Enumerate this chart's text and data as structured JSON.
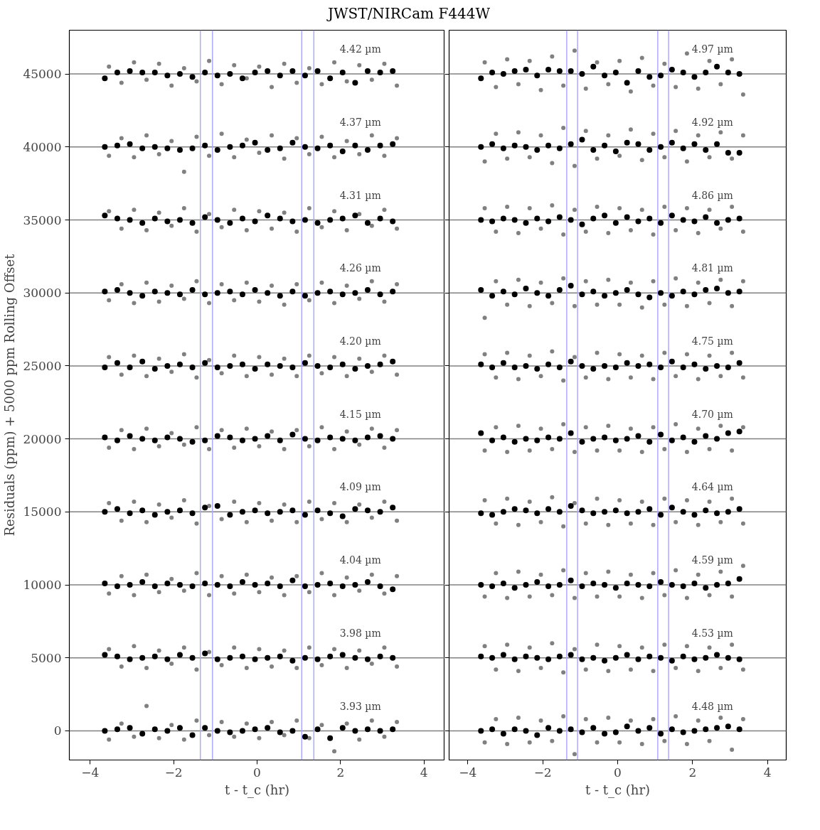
{
  "chart_data": [
    {
      "type": "scatter",
      "title": "JWST/NIRCam F444W",
      "xlabel": "t - t_c (hr)",
      "ylabel": "Residuals (ppm) + 5000 ppm Rolling Offset",
      "marker": "circle",
      "grid": false,
      "xlim": [
        -4.5,
        4.5
      ],
      "xticks": [
        -4,
        -2,
        0,
        2,
        4
      ],
      "ylim": [
        -2000,
        48000
      ],
      "yticks": [
        0,
        5000,
        10000,
        15000,
        20000,
        25000,
        30000,
        35000,
        40000,
        45000
      ],
      "x": [
        -3.65,
        -3.35,
        -3.05,
        -2.75,
        -2.45,
        -2.15,
        -1.85,
        -1.55,
        -1.25,
        -0.95,
        -0.65,
        -0.35,
        -0.05,
        0.25,
        0.55,
        0.85,
        1.15,
        1.45,
        1.75,
        2.05,
        2.35,
        2.65,
        2.95,
        3.25
      ],
      "ref_lines": [
        {
          "axis": "y",
          "value": 0,
          "color": "#808080"
        },
        {
          "axis": "y",
          "value": 5000,
          "color": "#808080"
        },
        {
          "axis": "y",
          "value": 10000,
          "color": "#808080"
        },
        {
          "axis": "y",
          "value": 15000,
          "color": "#808080"
        },
        {
          "axis": "y",
          "value": 20000,
          "color": "#808080"
        },
        {
          "axis": "y",
          "value": 25000,
          "color": "#808080"
        },
        {
          "axis": "y",
          "value": 30000,
          "color": "#808080"
        },
        {
          "axis": "y",
          "value": 35000,
          "color": "#808080"
        },
        {
          "axis": "y",
          "value": 40000,
          "color": "#808080"
        },
        {
          "axis": "y",
          "value": 45000,
          "color": "#808080"
        },
        {
          "axis": "x",
          "value": -1.36,
          "color": "#aaaaff"
        },
        {
          "axis": "x",
          "value": -1.07,
          "color": "#aaaaff"
        },
        {
          "axis": "x",
          "value": 1.07,
          "color": "#aaaaff"
        },
        {
          "axis": "x",
          "value": 1.36,
          "color": "#aaaaff"
        }
      ],
      "annotations": [
        "4.42 µm",
        "4.37 µm",
        "4.31 µm",
        "4.26 µm",
        "4.20 µm",
        "4.15 µm",
        "4.09 µm",
        "4.04 µm",
        "3.98 µm",
        "3.93 µm"
      ],
      "series": [
        {
          "color": "#808080",
          "x": [
            -3.55,
            -3.25,
            -2.95,
            -2.65,
            -2.35,
            -2.05,
            -1.75,
            -1.45,
            -1.15,
            -0.85,
            -0.55,
            -0.25,
            0.05,
            0.35,
            0.65,
            0.95,
            1.25,
            1.55,
            1.85,
            2.15,
            2.45,
            2.75,
            3.05,
            3.35
          ],
          "values": [
            45500,
            44400,
            45800,
            44600,
            45700,
            44200,
            45400,
            44500,
            45900,
            44300,
            45600,
            44700,
            45500,
            44100,
            45700,
            44400,
            45400,
            44300,
            45800,
            44500,
            45600,
            44600,
            45700,
            44200
          ]
        },
        {
          "color": "#808080",
          "x": [
            -3.55,
            -3.25,
            -2.95,
            -2.65,
            -2.35,
            -2.05,
            -1.75,
            -1.45,
            -1.15,
            -0.85,
            -0.55,
            -0.25,
            0.05,
            0.35,
            0.65,
            0.95,
            1.25,
            1.55,
            1.85,
            2.15,
            2.45,
            2.75,
            3.05,
            3.35
          ],
          "values": [
            39400,
            40600,
            39300,
            40800,
            39500,
            40400,
            38300,
            40700,
            39400,
            40900,
            39300,
            40500,
            39600,
            40800,
            39200,
            40600,
            39500,
            40700,
            39300,
            40400,
            39500,
            40800,
            39400,
            40600
          ]
        },
        {
          "color": "#808080",
          "x": [
            -3.55,
            -3.25,
            -2.95,
            -2.65,
            -2.35,
            -2.05,
            -1.75,
            -1.45,
            -1.15,
            -0.85,
            -0.55,
            -0.25,
            0.05,
            0.35,
            0.65,
            0.95,
            1.25,
            1.55,
            1.85,
            2.15,
            2.45,
            2.75,
            3.05,
            3.35
          ],
          "values": [
            35600,
            34400,
            35700,
            34300,
            35500,
            34600,
            35800,
            34200,
            35400,
            34500,
            35700,
            34300,
            35600,
            34400,
            35500,
            34200,
            35800,
            34500,
            35600,
            34300,
            35400,
            34600,
            35700,
            34400
          ]
        },
        {
          "color": "#808080",
          "x": [
            -3.55,
            -3.25,
            -2.95,
            -2.65,
            -2.35,
            -2.05,
            -1.75,
            -1.45,
            -1.15,
            -0.85,
            -0.55,
            -0.25,
            0.05,
            0.35,
            0.65,
            0.95,
            1.25,
            1.55,
            1.85,
            2.15,
            2.45,
            2.75,
            3.05,
            3.35
          ],
          "values": [
            29500,
            30600,
            29300,
            30700,
            29400,
            30500,
            29600,
            30800,
            29300,
            30600,
            29500,
            30700,
            29400,
            30500,
            29200,
            30600,
            29500,
            30700,
            29300,
            30500,
            29600,
            30800,
            29400,
            30600
          ]
        },
        {
          "color": "#808080",
          "x": [
            -3.55,
            -3.25,
            -2.95,
            -2.65,
            -2.35,
            -2.05,
            -1.75,
            -1.45,
            -1.15,
            -0.85,
            -0.55,
            -0.25,
            0.05,
            0.35,
            0.65,
            0.95,
            1.25,
            1.55,
            1.85,
            2.15,
            2.45,
            2.75,
            3.05,
            3.35
          ],
          "values": [
            25600,
            24400,
            25700,
            24300,
            25500,
            24600,
            25800,
            24200,
            25400,
            24500,
            25700,
            24300,
            25600,
            24400,
            25500,
            24300,
            25700,
            24500,
            25600,
            24300,
            25500,
            24600,
            25700,
            24400
          ]
        },
        {
          "color": "#808080",
          "x": [
            -3.55,
            -3.25,
            -2.95,
            -2.65,
            -2.35,
            -2.05,
            -1.75,
            -1.45,
            -1.15,
            -0.85,
            -0.55,
            -0.25,
            0.05,
            0.35,
            0.65,
            0.95,
            1.25,
            1.55,
            1.85,
            2.15,
            2.45,
            2.75,
            3.05,
            3.35
          ],
          "values": [
            19400,
            20600,
            19300,
            20700,
            19500,
            20400,
            19600,
            20800,
            19300,
            20600,
            19400,
            20700,
            19500,
            20500,
            19300,
            20600,
            19500,
            20800,
            19300,
            20500,
            19600,
            20700,
            19400,
            20600
          ]
        },
        {
          "color": "#808080",
          "x": [
            -3.55,
            -3.25,
            -2.95,
            -2.65,
            -2.35,
            -2.05,
            -1.75,
            -1.45,
            -1.15,
            -0.85,
            -0.55,
            -0.25,
            0.05,
            0.35,
            0.65,
            0.95,
            1.25,
            1.55,
            1.85,
            2.15,
            2.45,
            2.75,
            3.05,
            3.35
          ],
          "values": [
            15600,
            14400,
            15700,
            14300,
            15500,
            14600,
            15800,
            14200,
            15400,
            14500,
            15700,
            14300,
            15600,
            14400,
            15500,
            14300,
            15700,
            14500,
            15600,
            14300,
            15500,
            14600,
            15700,
            14400
          ]
        },
        {
          "color": "#808080",
          "x": [
            -3.55,
            -3.25,
            -2.95,
            -2.65,
            -2.35,
            -2.05,
            -1.75,
            -1.45,
            -1.15,
            -0.85,
            -0.55,
            -0.25,
            0.05,
            0.35,
            0.65,
            0.95,
            1.25,
            1.55,
            1.85,
            2.15,
            2.45,
            2.75,
            3.05,
            3.35
          ],
          "values": [
            9400,
            10600,
            9300,
            10700,
            9500,
            10400,
            9600,
            10800,
            9300,
            10600,
            9400,
            10700,
            9500,
            10500,
            9300,
            10600,
            9500,
            10800,
            9300,
            10500,
            9600,
            10700,
            9400,
            10600
          ]
        },
        {
          "color": "#808080",
          "x": [
            -3.55,
            -3.25,
            -2.95,
            -2.65,
            -2.35,
            -2.05,
            -1.75,
            -1.45,
            -1.15,
            -0.85,
            -0.55,
            -0.25,
            0.05,
            0.35,
            0.65,
            0.95,
            1.25,
            1.55,
            1.85,
            2.15,
            2.45,
            2.75,
            3.05,
            3.35
          ],
          "values": [
            5600,
            4400,
            5800,
            4300,
            5500,
            4600,
            5700,
            4200,
            5400,
            4500,
            5700,
            4300,
            5600,
            4400,
            5500,
            4300,
            5700,
            4500,
            5600,
            4300,
            5500,
            4600,
            5700,
            4400
          ]
        },
        {
          "color": "#808080",
          "x": [
            -3.55,
            -3.25,
            -2.95,
            -2.65,
            -2.35,
            -2.05,
            -1.75,
            -1.45,
            -1.15,
            -0.85,
            -0.55,
            -0.25,
            0.05,
            0.35,
            0.65,
            0.95,
            1.25,
            1.55,
            1.85,
            2.15,
            2.45,
            2.75,
            3.05,
            3.35
          ],
          "values": [
            -600,
            500,
            -400,
            1700,
            -500,
            400,
            -600,
            700,
            -300,
            600,
            -400,
            500,
            -500,
            600,
            -300,
            700,
            -500,
            400,
            -1400,
            500,
            -600,
            700,
            -400,
            600
          ]
        },
        {
          "color": "#000000",
          "values": [
            44700,
            45100,
            45200,
            45100,
            45100,
            44900,
            45000,
            44800,
            45100,
            44900,
            45000,
            44700,
            45100,
            45200,
            44900,
            45200,
            44900,
            45200,
            44700,
            45100,
            44400,
            45200,
            45100,
            45200
          ]
        },
        {
          "color": "#000000",
          "values": [
            40000,
            40100,
            40200,
            39900,
            40000,
            39900,
            39800,
            39900,
            40100,
            39800,
            40000,
            40100,
            40300,
            39800,
            39900,
            40300,
            40000,
            39900,
            40100,
            39700,
            40100,
            39800,
            40100,
            40200
          ]
        },
        {
          "color": "#000000",
          "values": [
            35300,
            35100,
            35000,
            34800,
            35100,
            34900,
            35000,
            34800,
            35200,
            35000,
            34800,
            35100,
            34900,
            35300,
            35100,
            34900,
            35000,
            34800,
            35000,
            35100,
            35300,
            34800,
            35100,
            34900
          ]
        },
        {
          "color": "#000000",
          "values": [
            30100,
            30200,
            30000,
            29800,
            30100,
            30000,
            29900,
            30200,
            29900,
            30000,
            30100,
            29900,
            30200,
            30000,
            29800,
            30100,
            29800,
            30000,
            30100,
            29900,
            30000,
            30200,
            29900,
            30100
          ]
        },
        {
          "color": "#000000",
          "values": [
            24900,
            25200,
            24900,
            25300,
            24800,
            25000,
            25100,
            24900,
            25200,
            24900,
            25000,
            25100,
            24800,
            25100,
            25000,
            24900,
            25200,
            25000,
            24900,
            25100,
            24800,
            25000,
            25100,
            25300
          ]
        },
        {
          "color": "#000000",
          "values": [
            20100,
            19900,
            20200,
            20000,
            19900,
            20100,
            20000,
            19800,
            19900,
            20200,
            20100,
            19900,
            20000,
            20200,
            19900,
            20300,
            20000,
            19900,
            20100,
            20000,
            19900,
            20100,
            20200,
            20000
          ]
        },
        {
          "color": "#000000",
          "values": [
            15000,
            15200,
            14900,
            15100,
            14800,
            15000,
            15100,
            14900,
            15300,
            15400,
            14800,
            15000,
            15100,
            14900,
            15000,
            15100,
            14800,
            15100,
            14900,
            14700,
            15200,
            15100,
            15000,
            15300
          ]
        },
        {
          "color": "#000000",
          "values": [
            10100,
            9900,
            10000,
            10200,
            9900,
            10100,
            10000,
            9900,
            10100,
            10000,
            9900,
            10200,
            10000,
            10100,
            9900,
            10300,
            9900,
            10000,
            10100,
            9900,
            10000,
            10200,
            9900,
            9700
          ]
        },
        {
          "color": "#000000",
          "values": [
            5200,
            5100,
            4900,
            5000,
            5100,
            4900,
            5200,
            5000,
            5300,
            4900,
            5000,
            5100,
            4900,
            5000,
            5100,
            4800,
            5000,
            4900,
            5100,
            5200,
            5000,
            4900,
            5100,
            5000
          ]
        },
        {
          "color": "#000000",
          "values": [
            0,
            100,
            200,
            -200,
            100,
            0,
            200,
            -300,
            200,
            0,
            -100,
            0,
            100,
            200,
            -100,
            0,
            -400,
            100,
            -500,
            200,
            0,
            100,
            0,
            100
          ]
        }
      ]
    },
    {
      "type": "scatter",
      "xlabel": "t - t_c (hr)",
      "marker": "circle",
      "grid": false,
      "tick_labels": "x",
      "xlim": [
        -4.5,
        4.5
      ],
      "xticks": [
        -4,
        -2,
        0,
        2,
        4
      ],
      "ylim": [
        -2000,
        48000
      ],
      "yticks": [
        0,
        5000,
        10000,
        15000,
        20000,
        25000,
        30000,
        35000,
        40000,
        45000
      ],
      "x": [
        -3.65,
        -3.35,
        -3.05,
        -2.75,
        -2.45,
        -2.15,
        -1.85,
        -1.55,
        -1.25,
        -0.95,
        -0.65,
        -0.35,
        -0.05,
        0.25,
        0.55,
        0.85,
        1.15,
        1.45,
        1.75,
        2.05,
        2.35,
        2.65,
        2.95,
        3.25
      ],
      "ref_lines": [
        {
          "axis": "y",
          "value": 0,
          "color": "#808080"
        },
        {
          "axis": "y",
          "value": 5000,
          "color": "#808080"
        },
        {
          "axis": "y",
          "value": 10000,
          "color": "#808080"
        },
        {
          "axis": "y",
          "value": 15000,
          "color": "#808080"
        },
        {
          "axis": "y",
          "value": 20000,
          "color": "#808080"
        },
        {
          "axis": "y",
          "value": 25000,
          "color": "#808080"
        },
        {
          "axis": "y",
          "value": 30000,
          "color": "#808080"
        },
        {
          "axis": "y",
          "value": 35000,
          "color": "#808080"
        },
        {
          "axis": "y",
          "value": 40000,
          "color": "#808080"
        },
        {
          "axis": "y",
          "value": 45000,
          "color": "#808080"
        },
        {
          "axis": "x",
          "value": -1.36,
          "color": "#aaaaff"
        },
        {
          "axis": "x",
          "value": -1.07,
          "color": "#aaaaff"
        },
        {
          "axis": "x",
          "value": 1.07,
          "color": "#aaaaff"
        },
        {
          "axis": "x",
          "value": 1.36,
          "color": "#aaaaff"
        }
      ],
      "annotations": [
        "4.97 µm",
        "4.92 µm",
        "4.86 µm",
        "4.81 µm",
        "4.75 µm",
        "4.70 µm",
        "4.64 µm",
        "4.59 µm",
        "4.53 µm",
        "4.48 µm"
      ],
      "series": [
        {
          "color": "#808080",
          "x": [
            -3.55,
            -3.25,
            -2.95,
            -2.65,
            -2.35,
            -2.05,
            -1.75,
            -1.45,
            -1.15,
            -0.85,
            -0.55,
            -0.25,
            0.05,
            0.35,
            0.65,
            0.95,
            1.25,
            1.55,
            1.85,
            2.15,
            2.45,
            2.75,
            3.05,
            3.35
          ],
          "values": [
            45800,
            44100,
            46000,
            44300,
            45900,
            43900,
            46200,
            44200,
            46600,
            44000,
            45800,
            44300,
            45900,
            43800,
            46100,
            44200,
            45700,
            44100,
            46400,
            44000,
            45900,
            44300,
            46000,
            43600
          ]
        },
        {
          "color": "#808080",
          "x": [
            -3.55,
            -3.25,
            -2.95,
            -2.65,
            -2.35,
            -2.05,
            -1.75,
            -1.45,
            -1.15,
            -0.85,
            -0.55,
            -0.25,
            0.05,
            0.35,
            0.65,
            0.95,
            1.25,
            1.55,
            1.85,
            2.15,
            2.45,
            2.75,
            3.05,
            3.35
          ],
          "values": [
            39000,
            40900,
            39200,
            41000,
            39300,
            40800,
            38900,
            41300,
            38700,
            41100,
            39200,
            40800,
            39400,
            41200,
            39100,
            40900,
            39300,
            41100,
            39000,
            40800,
            39300,
            41000,
            39200,
            40800
          ]
        },
        {
          "color": "#808080",
          "x": [
            -3.55,
            -3.25,
            -2.95,
            -2.65,
            -2.35,
            -2.05,
            -1.75,
            -1.45,
            -1.15,
            -0.85,
            -0.55,
            -0.25,
            0.05,
            0.35,
            0.65,
            0.95,
            1.25,
            1.55,
            1.85,
            2.15,
            2.45,
            2.75,
            3.05,
            3.35
          ],
          "values": [
            35800,
            34200,
            35900,
            34100,
            35800,
            34400,
            36000,
            34000,
            35700,
            34200,
            35900,
            34100,
            35800,
            34300,
            35700,
            34000,
            35900,
            34300,
            35800,
            34100,
            35700,
            34400,
            35900,
            34200
          ]
        },
        {
          "color": "#808080",
          "x": [
            -3.55,
            -3.25,
            -2.95,
            -2.65,
            -2.35,
            -2.05,
            -1.75,
            -1.45,
            -1.15,
            -0.85,
            -0.55,
            -0.25,
            0.05,
            0.35,
            0.65,
            0.95,
            1.25,
            1.55,
            1.85,
            2.15,
            2.45,
            2.75,
            3.05,
            3.35
          ],
          "values": [
            28300,
            30800,
            29200,
            30900,
            29100,
            30700,
            29300,
            31000,
            29100,
            30800,
            29200,
            30900,
            29200,
            30700,
            29000,
            30800,
            29200,
            31000,
            29100,
            30700,
            29300,
            30900,
            29100,
            30800
          ]
        },
        {
          "color": "#808080",
          "x": [
            -3.55,
            -3.25,
            -2.95,
            -2.65,
            -2.35,
            -2.05,
            -1.75,
            -1.45,
            -1.15,
            -0.85,
            -0.55,
            -0.25,
            0.05,
            0.35,
            0.65,
            0.95,
            1.25,
            1.55,
            1.85,
            2.15,
            2.45,
            2.75,
            3.05,
            3.35
          ],
          "values": [
            25800,
            24200,
            25900,
            24100,
            25700,
            24300,
            26000,
            24000,
            25600,
            24200,
            25900,
            24100,
            25800,
            24200,
            25700,
            24100,
            25900,
            24300,
            25800,
            24100,
            25700,
            24300,
            25900,
            24200
          ]
        },
        {
          "color": "#808080",
          "x": [
            -3.55,
            -3.25,
            -2.95,
            -2.65,
            -2.35,
            -2.05,
            -1.75,
            -1.45,
            -1.15,
            -0.85,
            -0.55,
            -0.25,
            0.05,
            0.35,
            0.65,
            0.95,
            1.25,
            1.55,
            1.85,
            2.15,
            2.45,
            2.75,
            3.05,
            3.35
          ],
          "values": [
            19200,
            20800,
            19100,
            20900,
            19200,
            20700,
            19300,
            21000,
            19100,
            20800,
            19200,
            20900,
            19200,
            20700,
            19100,
            20800,
            19300,
            21000,
            19100,
            20700,
            19300,
            20900,
            19200,
            20800
          ]
        },
        {
          "color": "#808080",
          "x": [
            -3.55,
            -3.25,
            -2.95,
            -2.65,
            -2.35,
            -2.05,
            -1.75,
            -1.45,
            -1.15,
            -0.85,
            -0.55,
            -0.25,
            0.05,
            0.35,
            0.65,
            0.95,
            1.25,
            1.55,
            1.85,
            2.15,
            2.45,
            2.75,
            3.05,
            3.35
          ],
          "values": [
            15800,
            14200,
            15900,
            14100,
            15700,
            14300,
            16000,
            14000,
            15600,
            14200,
            15900,
            14100,
            15800,
            14200,
            15700,
            14100,
            15900,
            14300,
            15800,
            14100,
            15700,
            14300,
            15900,
            14200
          ]
        },
        {
          "color": "#808080",
          "x": [
            -3.55,
            -3.25,
            -2.95,
            -2.65,
            -2.35,
            -2.05,
            -1.75,
            -1.45,
            -1.15,
            -0.85,
            -0.55,
            -0.25,
            0.05,
            0.35,
            0.65,
            0.95,
            1.25,
            1.55,
            1.85,
            2.15,
            2.45,
            2.75,
            3.05,
            3.35
          ],
          "values": [
            9200,
            10800,
            9100,
            10900,
            9200,
            10700,
            9300,
            11000,
            9100,
            10800,
            9200,
            10900,
            9200,
            10700,
            9100,
            10800,
            9300,
            11000,
            9100,
            10700,
            9300,
            10900,
            9200,
            11300
          ]
        },
        {
          "color": "#808080",
          "x": [
            -3.55,
            -3.25,
            -2.95,
            -2.65,
            -2.35,
            -2.05,
            -1.75,
            -1.45,
            -1.15,
            -0.85,
            -0.55,
            -0.25,
            0.05,
            0.35,
            0.65,
            0.95,
            1.25,
            1.55,
            1.85,
            2.15,
            2.45,
            2.75,
            3.05,
            3.35
          ],
          "values": [
            5800,
            4200,
            5900,
            4100,
            5700,
            4300,
            6000,
            4000,
            5600,
            4200,
            5900,
            4100,
            5800,
            4200,
            5700,
            4100,
            5900,
            4300,
            5800,
            4100,
            5700,
            4300,
            5900,
            4200
          ]
        },
        {
          "color": "#808080",
          "x": [
            -3.55,
            -3.25,
            -2.95,
            -2.65,
            -2.35,
            -2.05,
            -1.75,
            -1.45,
            -1.15,
            -0.85,
            -0.55,
            -0.25,
            0.05,
            0.35,
            0.65,
            0.95,
            1.25,
            1.55,
            1.85,
            2.15,
            2.45,
            2.75,
            3.05,
            3.35
          ],
          "values": [
            -800,
            800,
            -900,
            900,
            -800,
            700,
            -700,
            1000,
            -1600,
            800,
            -800,
            900,
            -800,
            700,
            -900,
            800,
            -700,
            1000,
            -900,
            700,
            -700,
            900,
            -1300,
            800
          ]
        },
        {
          "color": "#000000",
          "values": [
            44700,
            45100,
            45000,
            45200,
            45300,
            44900,
            45300,
            45200,
            45200,
            45000,
            45500,
            44900,
            45100,
            44400,
            45200,
            44800,
            44900,
            45300,
            45100,
            44800,
            45100,
            45500,
            45100,
            45000
          ]
        },
        {
          "color": "#000000",
          "values": [
            40000,
            40200,
            39900,
            40100,
            40000,
            39800,
            40100,
            39900,
            40200,
            40500,
            39800,
            40100,
            39700,
            40300,
            40200,
            39800,
            40000,
            40300,
            39900,
            40200,
            39800,
            40200,
            39600,
            39600
          ]
        },
        {
          "color": "#000000",
          "values": [
            35000,
            34900,
            35100,
            35000,
            34800,
            35100,
            34900,
            35200,
            35000,
            34700,
            35100,
            35300,
            34800,
            35200,
            34900,
            35100,
            34800,
            35300,
            35000,
            34900,
            35200,
            34800,
            35000,
            35100
          ]
        },
        {
          "color": "#000000",
          "values": [
            30200,
            29800,
            30100,
            29900,
            30300,
            30000,
            29800,
            30200,
            30500,
            29900,
            30100,
            29800,
            30000,
            30200,
            29900,
            29700,
            30000,
            29800,
            30100,
            29900,
            30200,
            30300,
            30000,
            30100
          ]
        },
        {
          "color": "#000000",
          "values": [
            25100,
            24900,
            25200,
            24900,
            25000,
            24800,
            25100,
            24900,
            25300,
            25000,
            24800,
            25000,
            24900,
            25200,
            25000,
            25100,
            24900,
            25300,
            24900,
            25100,
            24800,
            25000,
            24900,
            25200
          ]
        },
        {
          "color": "#000000",
          "values": [
            20400,
            19900,
            20100,
            19800,
            20000,
            19900,
            20100,
            20000,
            20400,
            19800,
            20000,
            20100,
            19900,
            20000,
            20200,
            19800,
            20300,
            19900,
            20100,
            19800,
            20200,
            20000,
            20400,
            20500
          ]
        },
        {
          "color": "#000000",
          "values": [
            14900,
            14800,
            15000,
            15200,
            15100,
            14900,
            15200,
            15000,
            15400,
            15100,
            14900,
            15000,
            15100,
            14900,
            15000,
            15200,
            14800,
            15300,
            15000,
            14800,
            15100,
            14900,
            15000,
            15200
          ]
        },
        {
          "color": "#000000",
          "values": [
            10000,
            9900,
            10100,
            9800,
            10000,
            10200,
            9900,
            10000,
            10300,
            9900,
            10100,
            10000,
            9800,
            10100,
            10000,
            9900,
            10200,
            10000,
            9900,
            10100,
            9800,
            10000,
            10100,
            10400
          ]
        },
        {
          "color": "#000000",
          "values": [
            5100,
            5000,
            5200,
            4900,
            5100,
            5000,
            4900,
            5100,
            5200,
            4900,
            5000,
            4800,
            5000,
            5200,
            4900,
            5100,
            5000,
            4800,
            5100,
            4900,
            5000,
            5200,
            5000,
            4900
          ]
        },
        {
          "color": "#000000",
          "values": [
            0,
            100,
            -200,
            100,
            0,
            -300,
            200,
            0,
            100,
            -100,
            200,
            -200,
            -100,
            300,
            0,
            200,
            -200,
            100,
            -100,
            0,
            100,
            200,
            300,
            100
          ]
        }
      ]
    }
  ]
}
